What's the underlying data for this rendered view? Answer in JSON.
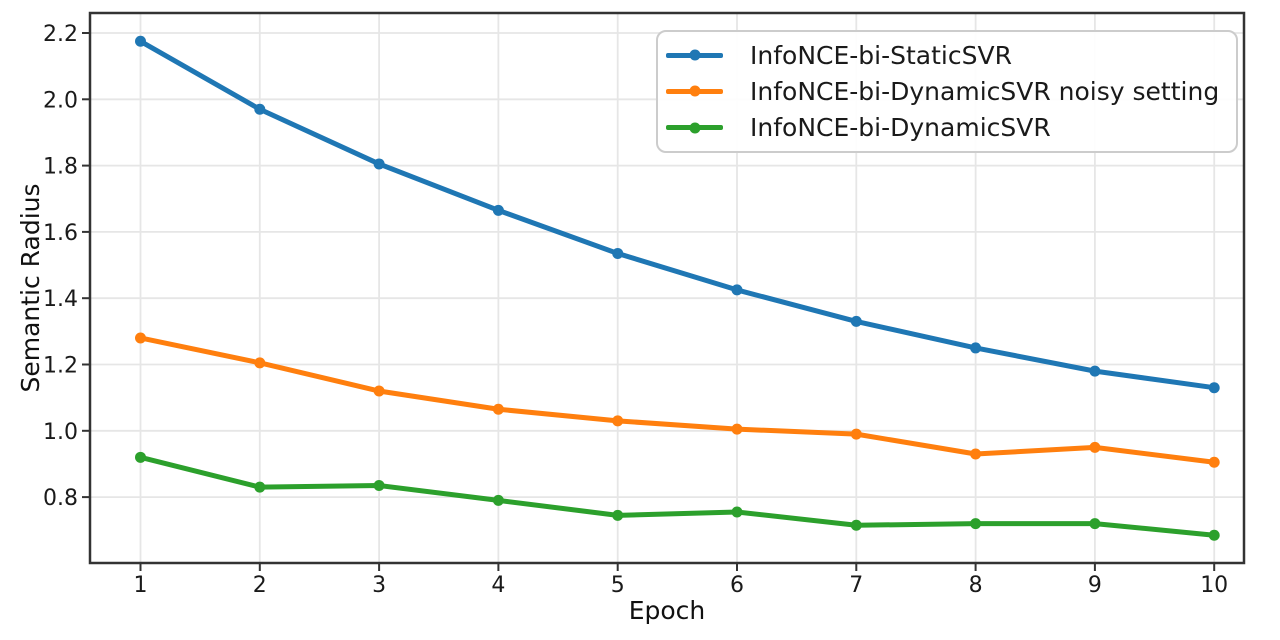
{
  "chart_data": {
    "type": "line",
    "title": "",
    "xlabel": "Epoch",
    "ylabel": "Semantic Radius",
    "x": [
      1,
      2,
      3,
      4,
      5,
      6,
      7,
      8,
      9,
      10
    ],
    "x_ticks": [
      "1",
      "2",
      "3",
      "4",
      "5",
      "6",
      "7",
      "8",
      "9",
      "10"
    ],
    "y_ticks": [
      "2.2",
      "2.0",
      "1.8",
      "1.6",
      "1.4",
      "1.2",
      "1.0",
      "0.8"
    ],
    "y_tick_values": [
      2.2,
      2.0,
      1.8,
      1.6,
      1.4,
      1.2,
      1.0,
      0.8
    ],
    "xlim": [
      0.58,
      10.25
    ],
    "ylim": [
      0.6,
      2.26
    ],
    "grid": true,
    "legend_position": "upper right",
    "series": [
      {
        "name": "InfoNCE-bi-StaticSVR",
        "color": "#1f77b4",
        "marker": "circle",
        "values": [
          2.175,
          1.97,
          1.805,
          1.665,
          1.535,
          1.425,
          1.33,
          1.25,
          1.18,
          1.13
        ]
      },
      {
        "name": "InfoNCE-bi-DynamicSVR noisy setting",
        "color": "#ff7f0e",
        "marker": "circle",
        "values": [
          1.28,
          1.205,
          1.12,
          1.065,
          1.03,
          1.005,
          0.99,
          0.93,
          0.95,
          0.905
        ]
      },
      {
        "name": "InfoNCE-bi-DynamicSVR",
        "color": "#2ca02c",
        "marker": "circle",
        "values": [
          0.92,
          0.83,
          0.835,
          0.79,
          0.745,
          0.755,
          0.715,
          0.72,
          0.72,
          0.685
        ]
      }
    ]
  },
  "style": {
    "grid_color": "#e6e6e6",
    "spine_color": "#333333",
    "tick_color": "#333333",
    "tick_label_color": "#1a1a1a"
  }
}
